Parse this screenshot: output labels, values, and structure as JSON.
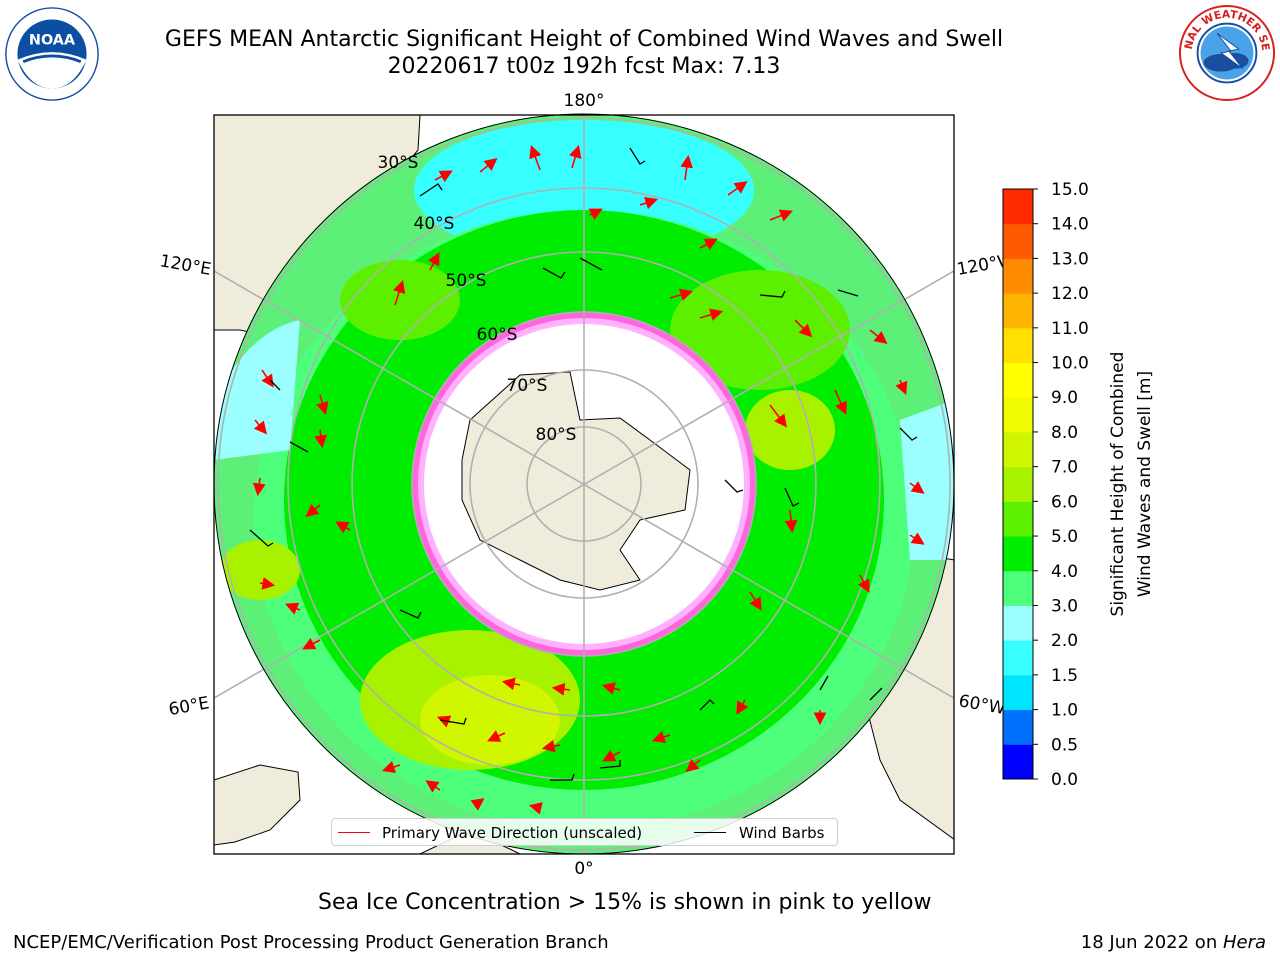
{
  "title_line1": "GEFS MEAN Antarctic Significant Height of Combined Wind Waves and Swell",
  "title_line2": "20220617 t00z 192h fcst   Max: 7.13",
  "colorbar": {
    "label_line1": "Significant Height of Combined",
    "label_line2": "Wind Waves and Swell [m]",
    "ticks": [
      "0.0",
      "0.5",
      "1.0",
      "1.5",
      "2.0",
      "3.0",
      "4.0",
      "5.0",
      "6.0",
      "7.0",
      "8.0",
      "9.0",
      "10.0",
      "11.0",
      "12.0",
      "13.0",
      "14.0",
      "15.0"
    ],
    "colors": [
      "#0000ff",
      "#0070ff",
      "#00e5ff",
      "#38ffff",
      "#9cffff",
      "#4dff7a",
      "#00ec00",
      "#5cf000",
      "#a8f200",
      "#d0f600",
      "#f0fa00",
      "#ffff00",
      "#ffe000",
      "#ffb400",
      "#ff8c00",
      "#ff5a00",
      "#ff2a00",
      "#ff0000"
    ]
  },
  "lon_labels": {
    "top": "180°",
    "bottom": "0°",
    "left_upper": "120°E",
    "left_lower": "60°E",
    "right_upper": "120°W",
    "right_lower": "60°W"
  },
  "lat_labels": [
    "30°S",
    "40°S",
    "50°S",
    "60°S",
    "70°S",
    "80°S"
  ],
  "legend": {
    "wave_label": "Primary Wave Direction (unscaled)",
    "barb_label": "Wind Barbs",
    "wave_color": "#ff0000",
    "barb_color": "#000000"
  },
  "sea_ice_note": "Sea Ice Concentration > 15% is shown in pink to yellow",
  "footer_left": "NCEP/EMC/Verification Post Processing Product Generation Branch",
  "footer_right_date": "18 Jun 2022 on ",
  "footer_right_host": "Hera",
  "logos": {
    "left": "NOAA",
    "right_text": "NATIONAL WEATHER SERVICE"
  }
}
